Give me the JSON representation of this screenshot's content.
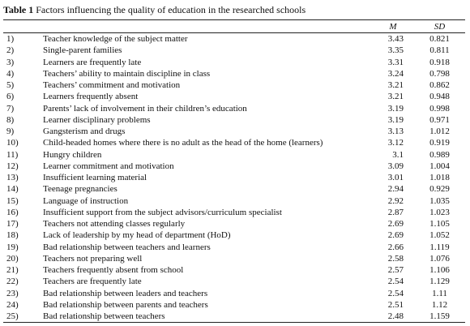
{
  "caption": {
    "label": "Table 1",
    "text": "Factors influencing the quality of education in the researched schools"
  },
  "table": {
    "header": [
      "M",
      "SD"
    ],
    "rows": [
      [
        "1)",
        "Teacher knowledge of the subject matter",
        3.43,
        0.821
      ],
      [
        "2)",
        "Single-parent families",
        3.35,
        0.811
      ],
      [
        "3)",
        "Learners are frequently late",
        3.31,
        0.918
      ],
      [
        "4)",
        "Teachers’ ability to maintain discipline in class",
        3.24,
        0.798
      ],
      [
        "5)",
        "Teachers’ commitment and motivation",
        3.21,
        0.862
      ],
      [
        "6)",
        "Learners frequently absent",
        3.21,
        0.948
      ],
      [
        "7)",
        "Parents’ lack of involvement in their children’s education",
        3.19,
        0.998
      ],
      [
        "8)",
        "Learner disciplinary problems",
        3.19,
        0.971
      ],
      [
        "9)",
        "Gangsterism and drugs",
        3.13,
        1.012
      ],
      [
        "10)",
        "Child-headed homes where there is no adult as the head of the home (learners)",
        3.12,
        0.919
      ],
      [
        "11)",
        "Hungry children",
        3.1,
        0.989
      ],
      [
        "12)",
        "Learner commitment and motivation",
        3.09,
        1.004
      ],
      [
        "13)",
        "Insufficient learning material",
        3.01,
        1.018
      ],
      [
        "14)",
        "Teenage pregnancies",
        2.94,
        0.929
      ],
      [
        "15)",
        "Language of instruction",
        2.92,
        1.035
      ],
      [
        "16)",
        "Insufficient support from the subject advisors/curriculum specialist",
        2.87,
        1.023
      ],
      [
        "17)",
        "Teachers not attending classes regularly",
        2.69,
        1.105
      ],
      [
        "18)",
        "Lack of leadership by my head of department (HoD)",
        2.69,
        1.052
      ],
      [
        "19)",
        "Bad relationship between teachers and learners",
        2.66,
        1.119
      ],
      [
        "20)",
        "Teachers not preparing well",
        2.58,
        1.076
      ],
      [
        "21)",
        "Teachers frequently absent from school",
        2.57,
        1.106
      ],
      [
        "22)",
        "Teachers are frequently late",
        2.54,
        1.129
      ],
      [
        "23)",
        "Bad relationship between leaders and teachers",
        2.54,
        1.11
      ],
      [
        "24)",
        "Bad relationship between parents and teachers",
        2.51,
        1.12
      ],
      [
        "25)",
        "Bad relationship between teachers",
        2.48,
        1.159
      ]
    ]
  }
}
